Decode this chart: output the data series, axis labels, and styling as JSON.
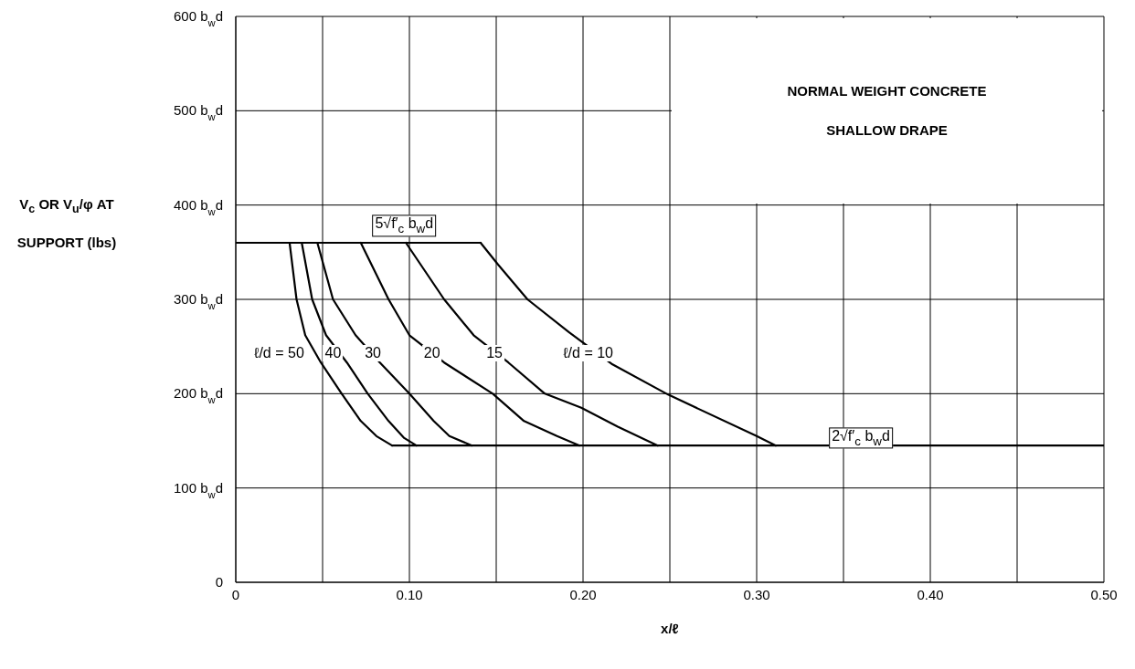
{
  "chart_data": {
    "type": "line",
    "xlabel": "x/ℓ",
    "ylabel": "V$_{c}$ OR V$_{u}$/φ AT SUPPORT (lbs)",
    "xlim": [
      0,
      0.5
    ],
    "ylim": [
      0,
      600
    ],
    "xticks": [
      0,
      {
        "value": 0.05,
        "label": null
      },
      {
        "value": 0.1,
        "label": "0.10"
      },
      {
        "value": 0.15,
        "label": null
      },
      {
        "value": 0.2,
        "label": "0.20"
      },
      {
        "value": 0.25,
        "label": null
      },
      {
        "value": 0.3,
        "label": "0.30"
      },
      {
        "value": 0.35,
        "label": null
      },
      {
        "value": 0.4,
        "label": "0.40"
      },
      {
        "value": 0.45,
        "label": null
      },
      {
        "value": 0.5,
        "label": "0.50"
      }
    ],
    "yticks": [
      0,
      {
        "value": 100,
        "label": "100 b$_{w}$d"
      },
      {
        "value": 200,
        "label": "200 b$_{w}$d"
      },
      {
        "value": 300,
        "label": "300 b$_{w}$d"
      },
      {
        "value": 400,
        "label": "400 b$_{w}$d"
      },
      {
        "value": 500,
        "label": "500 b$_{w}$d"
      },
      {
        "value": 600,
        "label": "600 b$_{w}$d"
      }
    ],
    "grid": true,
    "series": [
      {
        "color": "#000000",
        "x": [
          0,
          0.141
        ],
        "values": [
          360,
          360
        ]
      },
      {
        "color": "#000000",
        "x": [
          0.09,
          0.5
        ],
        "values": [
          145,
          145
        ]
      },
      {
        "color": "#000000",
        "x": [
          0.031,
          0.035,
          0.04,
          0.049,
          0.061,
          0.072,
          0.081,
          0.09
        ],
        "values": [
          360,
          300,
          262,
          233,
          200,
          171,
          155,
          145
        ]
      },
      {
        "color": "#000000",
        "x": [
          0.038,
          0.044,
          0.052,
          0.064,
          0.076,
          0.088,
          0.097,
          0.104
        ],
        "values": [
          360,
          300,
          262,
          233,
          200,
          171,
          153,
          145
        ]
      },
      {
        "color": "#000000",
        "x": [
          0.047,
          0.056,
          0.069,
          0.083,
          0.1,
          0.114,
          0.123,
          0.136
        ],
        "values": [
          360,
          300,
          262,
          233,
          200,
          171,
          155,
          145
        ]
      },
      {
        "color": "#000000",
        "x": [
          0.072,
          0.088,
          0.1,
          0.12,
          0.148,
          0.166,
          0.185,
          0.198
        ],
        "values": [
          360,
          300,
          262,
          233,
          200,
          171,
          155,
          145
        ]
      },
      {
        "color": "#000000",
        "x": [
          0.098,
          0.12,
          0.137,
          0.157,
          0.178,
          0.199,
          0.22,
          0.243
        ],
        "values": [
          360,
          300,
          262,
          233,
          200,
          185,
          165,
          145
        ]
      },
      {
        "color": "#000000",
        "x": [
          0.141,
          0.151,
          0.168,
          0.192,
          0.217,
          0.249,
          0.3,
          0.311
        ],
        "values": [
          360,
          337,
          300,
          265,
          231,
          199,
          155,
          145
        ]
      }
    ],
    "annotations": [
      "NORMAL WEIGHT CONCRETE",
      "SHALLOW DRAPE",
      "5√f′$_{c}$ b$_{w}$d",
      "2√f′$_{c}$ b$_{w}$d",
      "ℓ/d = 50",
      "40",
      "30",
      "20",
      "15",
      "ℓ/d = 10"
    ]
  }
}
